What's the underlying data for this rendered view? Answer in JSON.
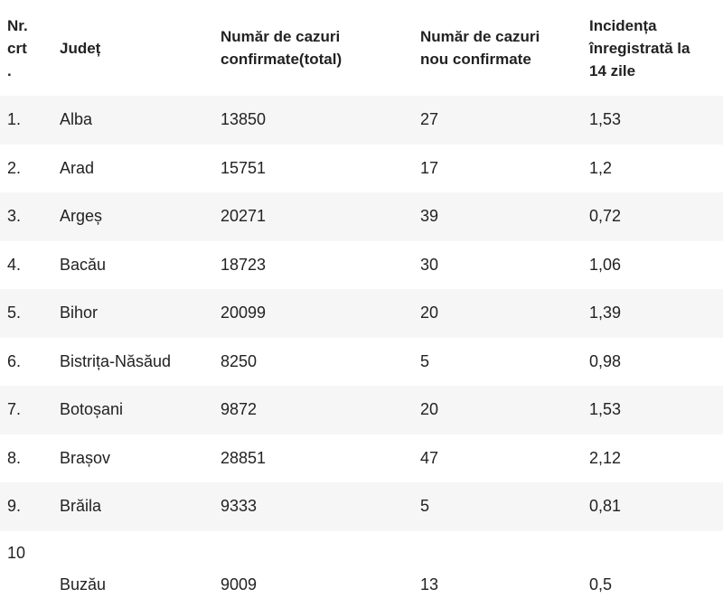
{
  "table": {
    "headers": [
      "Nr. crt .",
      "Județ",
      "Număr de cazuri confirmate(total)",
      "Număr de cazuri nou confirmate",
      "Incidența înregistrată la 14 zile"
    ],
    "header_lines": {
      "nr": [
        "Nr.",
        "crt",
        "."
      ],
      "judet": [
        "Județ"
      ],
      "total": [
        "Număr de cazuri",
        "confirmate(total)"
      ],
      "nou": [
        "Număr de cazuri",
        "nou confirmate"
      ],
      "incidenta": [
        "Incidența",
        "înregistrată la",
        "14 zile"
      ]
    },
    "rows": [
      {
        "nr": "1.",
        "judet": "Alba",
        "total": "13850",
        "nou": "27",
        "incidenta": "1,53"
      },
      {
        "nr": "2.",
        "judet": "Arad",
        "total": "15751",
        "nou": "17",
        "incidenta": "1,2"
      },
      {
        "nr": "3.",
        "judet": "Argeș",
        "total": "20271",
        "nou": "39",
        "incidenta": "0,72"
      },
      {
        "nr": "4.",
        "judet": "Bacău",
        "total": "18723",
        "nou": "30",
        "incidenta": "1,06"
      },
      {
        "nr": "5.",
        "judet": "Bihor",
        "total": "20099",
        "nou": "20",
        "incidenta": "1,39"
      },
      {
        "nr": "6.",
        "judet": "Bistrița-Năsăud",
        "total": "8250",
        "nou": "5",
        "incidenta": "0,98"
      },
      {
        "nr": "7.",
        "judet": "Botoșani",
        "total": "9872",
        "nou": "20",
        "incidenta": "1,53"
      },
      {
        "nr": "8.",
        "judet": "Brașov",
        "total": "28851",
        "nou": "47",
        "incidenta": "2,12"
      },
      {
        "nr": "9.",
        "judet": "Brăila",
        "total": "9333",
        "nou": "5",
        "incidenta": "0,81"
      },
      {
        "nr": "10",
        "judet": "Buzău",
        "total": "9009",
        "nou": "13",
        "incidenta": "0,5"
      }
    ]
  }
}
